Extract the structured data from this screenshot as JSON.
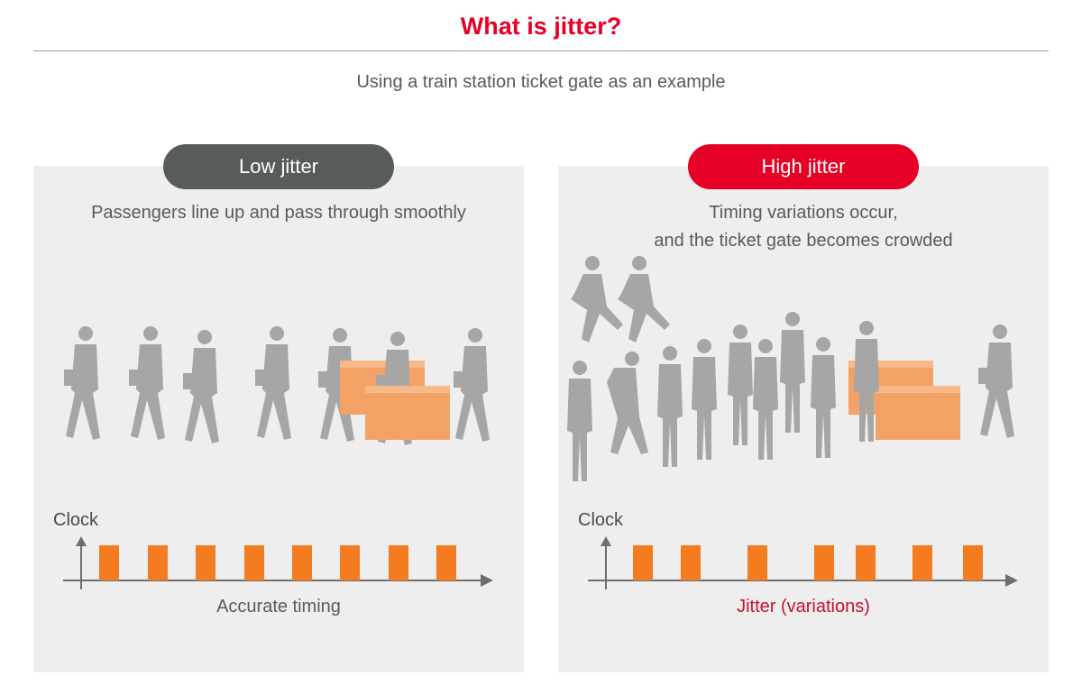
{
  "header": {
    "title": "What is jitter?",
    "subtitle": "Using a train station ticket gate as an example"
  },
  "left_panel": {
    "badge": "Low jitter",
    "description": [
      "Passengers line up and pass through smoothly"
    ],
    "clock_label": "Clock",
    "caption": "Accurate timing"
  },
  "right_panel": {
    "badge": "High jitter",
    "description": [
      "Timing variations occur,",
      "and the ticket gate becomes crowded"
    ],
    "clock_label": "Clock",
    "caption": "Jitter (variations)"
  },
  "colors": {
    "title_red": "#e60026",
    "badge_gray": "#575b5c",
    "badge_red": "#e60026",
    "panel_bg": "#eeeeee",
    "pulse_orange": "#f57b20",
    "gate_orange": "#f4a166",
    "silhouette_gray": "#a6a6a6",
    "caption_red": "#c8102e"
  },
  "icons": [
    "person-silhouette-icon",
    "ticket-gate-icon",
    "clock-axis-arrow-icon"
  ]
}
